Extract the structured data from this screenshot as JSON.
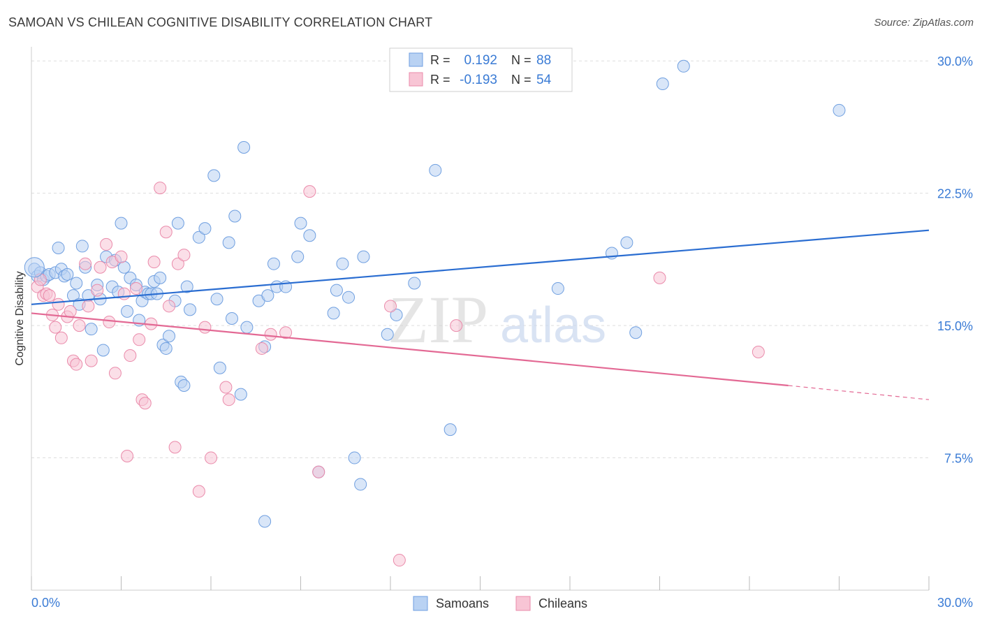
{
  "header": {
    "title": "SAMOAN VS CHILEAN COGNITIVE DISABILITY CORRELATION CHART",
    "source": "Source: ZipAtlas.com"
  },
  "watermark": {
    "zip": "ZIP",
    "atlas": "atlas"
  },
  "colors": {
    "samoans": "#6f9fe0",
    "samoans_fill": "#b9d2f3",
    "samoans_line": "#2a6dd1",
    "chileans": "#ea8aaa",
    "chileans_fill": "#f8c5d5",
    "chileans_line": "#e36994",
    "value_text": "#3a7bd5",
    "grid": "#dddddd"
  },
  "legend_box": {
    "rows": [
      {
        "r_label": "R =",
        "r_value": "0.192",
        "n_label": "N =",
        "n_value": "88"
      },
      {
        "r_label": "R =",
        "r_value": "-0.193",
        "n_label": "N =",
        "n_value": "54"
      }
    ]
  },
  "chart_data": {
    "type": "scatter",
    "title": "SAMOAN VS CHILEAN COGNITIVE DISABILITY CORRELATION CHART",
    "ylabel": "Cognitive Disability",
    "xlabel": "",
    "xlim": [
      0,
      30
    ],
    "ylim": [
      0,
      30.8
    ],
    "x_tick_labels": [
      "0.0%",
      "30.0%"
    ],
    "y_ticks": [
      7.5,
      15.0,
      22.5,
      30.0
    ],
    "y_tick_labels": [
      "7.5%",
      "15.0%",
      "22.5%",
      "30.0%"
    ],
    "grid": true,
    "legend_position": "bottom-center",
    "series": [
      {
        "name": "Samoans",
        "r": 0.192,
        "n": 88,
        "trend": {
          "x0": 0,
          "y0": 16.2,
          "x1": 30,
          "y1": 20.4
        },
        "points": [
          [
            0.1,
            18.2
          ],
          [
            0.2,
            17.8
          ],
          [
            0.3,
            18.0
          ],
          [
            0.4,
            17.6
          ],
          [
            0.5,
            17.8
          ],
          [
            0.6,
            17.9
          ],
          [
            0.8,
            18.0
          ],
          [
            0.9,
            19.4
          ],
          [
            1.0,
            18.2
          ],
          [
            1.1,
            17.8
          ],
          [
            1.2,
            17.9
          ],
          [
            1.4,
            16.7
          ],
          [
            1.5,
            17.4
          ],
          [
            1.6,
            16.2
          ],
          [
            1.7,
            19.5
          ],
          [
            1.8,
            18.3
          ],
          [
            1.9,
            16.7
          ],
          [
            2.0,
            14.8
          ],
          [
            2.2,
            17.3
          ],
          [
            2.3,
            16.5
          ],
          [
            2.4,
            13.6
          ],
          [
            2.5,
            18.9
          ],
          [
            2.7,
            17.2
          ],
          [
            2.8,
            18.7
          ],
          [
            2.9,
            16.9
          ],
          [
            3.0,
            20.8
          ],
          [
            3.1,
            18.3
          ],
          [
            3.2,
            15.8
          ],
          [
            3.3,
            17.7
          ],
          [
            3.5,
            17.3
          ],
          [
            3.6,
            15.3
          ],
          [
            3.7,
            16.4
          ],
          [
            3.8,
            16.9
          ],
          [
            3.9,
            16.8
          ],
          [
            4.0,
            16.8
          ],
          [
            4.1,
            17.5
          ],
          [
            4.2,
            16.8
          ],
          [
            4.3,
            17.7
          ],
          [
            4.4,
            13.9
          ],
          [
            4.5,
            13.7
          ],
          [
            4.6,
            14.4
          ],
          [
            4.8,
            16.4
          ],
          [
            4.9,
            20.8
          ],
          [
            5.0,
            11.8
          ],
          [
            5.1,
            11.6
          ],
          [
            5.2,
            17.2
          ],
          [
            5.3,
            15.9
          ],
          [
            5.6,
            20.0
          ],
          [
            5.8,
            20.5
          ],
          [
            6.1,
            23.5
          ],
          [
            6.2,
            16.5
          ],
          [
            6.3,
            12.6
          ],
          [
            6.6,
            19.7
          ],
          [
            6.7,
            15.4
          ],
          [
            6.8,
            21.2
          ],
          [
            7.0,
            11.1
          ],
          [
            7.1,
            25.1
          ],
          [
            7.2,
            14.9
          ],
          [
            7.6,
            16.4
          ],
          [
            7.8,
            13.8
          ],
          [
            7.9,
            16.7
          ],
          [
            8.1,
            18.5
          ],
          [
            8.2,
            17.2
          ],
          [
            8.5,
            17.2
          ],
          [
            8.9,
            18.9
          ],
          [
            9.0,
            20.8
          ],
          [
            9.3,
            20.1
          ],
          [
            9.6,
            6.7
          ],
          [
            10.1,
            15.7
          ],
          [
            10.2,
            17.0
          ],
          [
            10.4,
            18.5
          ],
          [
            10.6,
            16.6
          ],
          [
            10.8,
            7.5
          ],
          [
            11.0,
            6.0
          ],
          [
            11.1,
            18.9
          ],
          [
            11.9,
            14.5
          ],
          [
            12.2,
            15.6
          ],
          [
            12.8,
            17.4
          ],
          [
            13.5,
            23.8
          ],
          [
            14.0,
            9.1
          ],
          [
            17.6,
            17.1
          ],
          [
            19.4,
            19.1
          ],
          [
            19.9,
            19.7
          ],
          [
            20.2,
            14.6
          ],
          [
            21.1,
            28.7
          ],
          [
            21.8,
            29.7
          ],
          [
            27.0,
            27.2
          ],
          [
            7.8,
            3.9
          ]
        ]
      },
      {
        "name": "Chileans",
        "r": -0.193,
        "n": 54,
        "trend": {
          "x0": 0,
          "y0": 15.7,
          "x1": 25.3,
          "y1": 11.6,
          "dash_x1": 30,
          "dash_y1": 10.8
        },
        "points": [
          [
            0.2,
            17.2
          ],
          [
            0.3,
            17.6
          ],
          [
            0.4,
            16.7
          ],
          [
            0.5,
            16.8
          ],
          [
            0.6,
            16.7
          ],
          [
            0.7,
            15.6
          ],
          [
            0.8,
            14.9
          ],
          [
            0.9,
            16.2
          ],
          [
            1.0,
            14.3
          ],
          [
            1.2,
            15.5
          ],
          [
            1.3,
            15.8
          ],
          [
            1.4,
            13.0
          ],
          [
            1.5,
            12.8
          ],
          [
            1.6,
            15.0
          ],
          [
            1.8,
            18.5
          ],
          [
            1.9,
            16.1
          ],
          [
            2.0,
            13.0
          ],
          [
            2.2,
            17.0
          ],
          [
            2.3,
            18.3
          ],
          [
            2.5,
            19.6
          ],
          [
            2.6,
            15.2
          ],
          [
            2.7,
            18.6
          ],
          [
            2.8,
            12.3
          ],
          [
            3.0,
            18.9
          ],
          [
            3.1,
            16.8
          ],
          [
            3.2,
            7.6
          ],
          [
            3.3,
            13.3
          ],
          [
            3.5,
            17.1
          ],
          [
            3.6,
            14.2
          ],
          [
            3.7,
            10.8
          ],
          [
            3.8,
            10.6
          ],
          [
            4.0,
            15.1
          ],
          [
            4.1,
            18.6
          ],
          [
            4.3,
            22.8
          ],
          [
            4.5,
            20.3
          ],
          [
            4.6,
            16.1
          ],
          [
            4.8,
            8.1
          ],
          [
            4.9,
            18.5
          ],
          [
            5.1,
            19.0
          ],
          [
            5.6,
            5.6
          ],
          [
            5.8,
            14.9
          ],
          [
            6.0,
            7.5
          ],
          [
            6.5,
            11.5
          ],
          [
            6.6,
            10.8
          ],
          [
            7.7,
            13.7
          ],
          [
            8.0,
            14.5
          ],
          [
            8.5,
            14.6
          ],
          [
            9.3,
            22.6
          ],
          [
            9.6,
            6.7
          ],
          [
            12.0,
            16.1
          ],
          [
            12.3,
            1.7
          ],
          [
            14.2,
            15.0
          ],
          [
            21.0,
            17.7
          ],
          [
            24.3,
            13.5
          ]
        ]
      }
    ]
  },
  "bottom_legend": {
    "items": [
      {
        "label": "Samoans"
      },
      {
        "label": "Chileans"
      }
    ]
  }
}
